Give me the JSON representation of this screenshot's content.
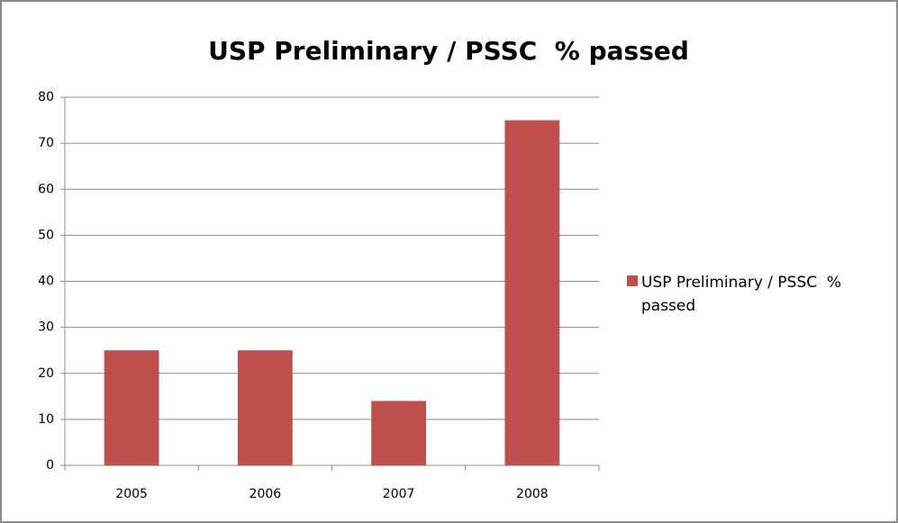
{
  "chart_data": {
    "type": "bar",
    "title": "USP Preliminary / PSSC  % passed",
    "categories": [
      "2005",
      "2006",
      "2007",
      "2008"
    ],
    "series": [
      {
        "name": "USP Preliminary / PSSC  % passed",
        "color": "#c0504d",
        "values": [
          25,
          25,
          14,
          75
        ]
      }
    ],
    "ylim": [
      0,
      80
    ],
    "yticks": [
      0,
      10,
      20,
      30,
      40,
      50,
      60,
      70,
      80
    ],
    "grid": true,
    "legend": "right"
  }
}
